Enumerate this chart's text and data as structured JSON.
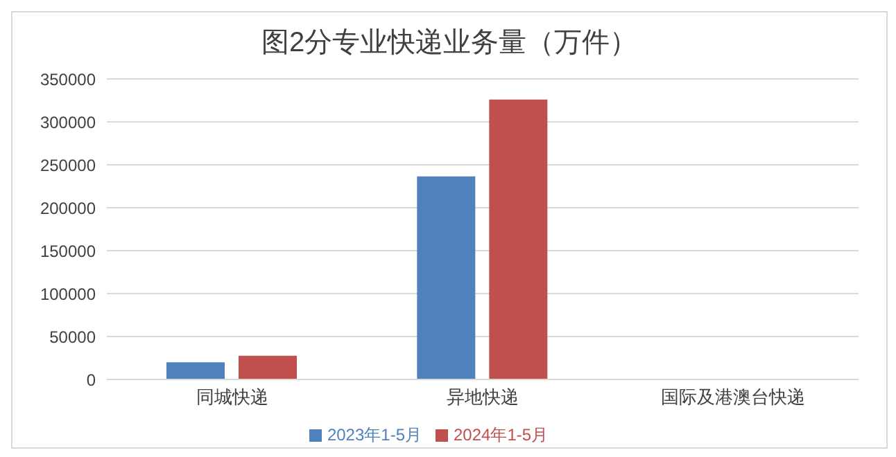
{
  "chart_data": {
    "type": "bar",
    "title": "图2分专业快递业务量（万件）",
    "categories": [
      "同城快递",
      "异地快递",
      "国际及港澳台快递"
    ],
    "series": [
      {
        "name": "2023年1-5月",
        "color": "#4f81bd",
        "values": [
          20000,
          236500,
          0
        ]
      },
      {
        "name": "2024年1-5月",
        "color": "#c0504d",
        "values": [
          27700,
          326000,
          0
        ]
      }
    ],
    "ylim": [
      0,
      350000
    ],
    "yticks": [
      0,
      50000,
      100000,
      150000,
      200000,
      250000,
      300000,
      350000
    ],
    "grid": "y",
    "legend": "bottom"
  }
}
